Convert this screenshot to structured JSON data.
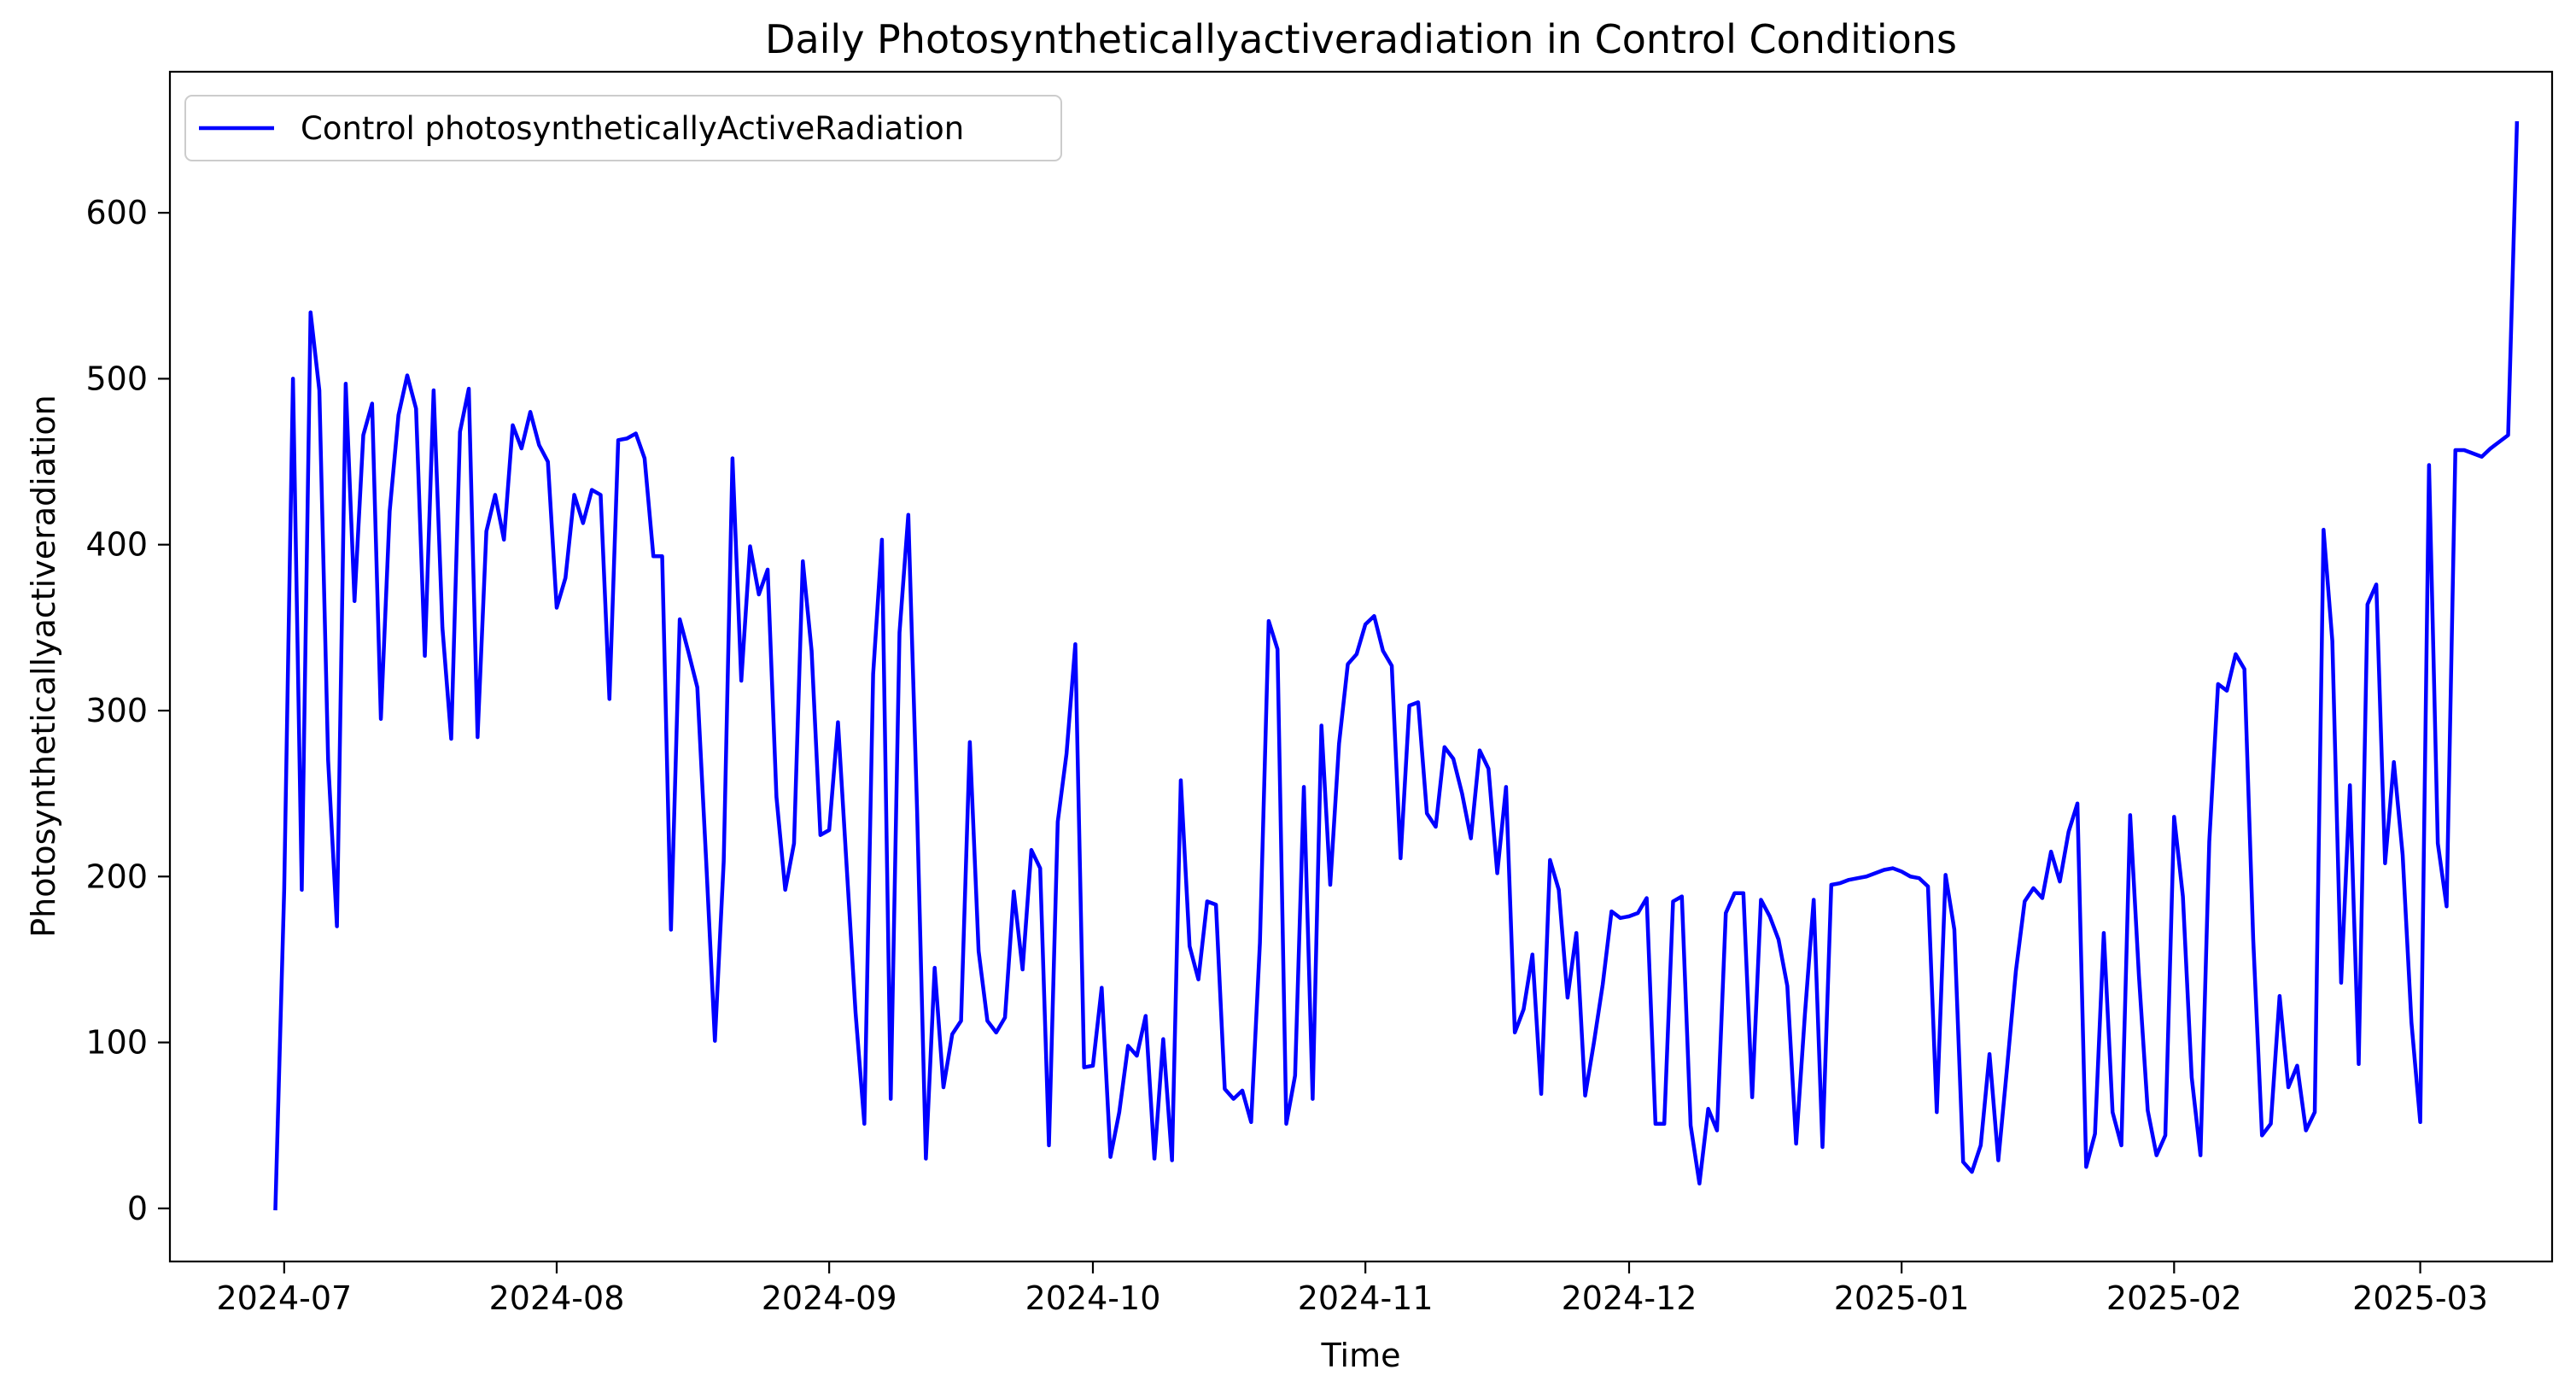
{
  "chart_data": {
    "type": "line",
    "title": "Daily Photosyntheticallyactiveradiation in Control Conditions",
    "xlabel": "Time",
    "ylabel": "Photosyntheticallyactiveradiation",
    "x_range": [
      "2024-06-18",
      "2025-03-16"
    ],
    "ylim": [
      -32,
      685
    ],
    "x_ticks": [
      "2024-07-01",
      "2024-08-01",
      "2024-09-01",
      "2024-10-01",
      "2024-11-01",
      "2024-12-01",
      "2025-01-01",
      "2025-02-01",
      "2025-03-01"
    ],
    "x_tick_labels": [
      "2024-07",
      "2024-08",
      "2024-09",
      "2024-10",
      "2024-11",
      "2024-12",
      "2025-01",
      "2025-02",
      "2025-03"
    ],
    "y_ticks": [
      0,
      100,
      200,
      300,
      400,
      500,
      600
    ],
    "y_tick_labels": [
      "0",
      "100",
      "200",
      "300",
      "400",
      "500",
      "600"
    ],
    "grid": false,
    "legend_position": "upper-left",
    "series": [
      {
        "name": "Control photosyntheticallyActiveRadiation",
        "color": "#0000ff",
        "start_date": "2024-06-30",
        "values": [
          0,
          192,
          500,
          192,
          540,
          493,
          270,
          170,
          497,
          366,
          466,
          485,
          295,
          420,
          478,
          502,
          482,
          333,
          493,
          350,
          283,
          468,
          494,
          284,
          408,
          430,
          403,
          472,
          458,
          480,
          460,
          450,
          362,
          380,
          430,
          413,
          433,
          430,
          307,
          463,
          464,
          467,
          452,
          393,
          393,
          168,
          355,
          335,
          314,
          210,
          101,
          209,
          452,
          318,
          399,
          370,
          385,
          248,
          192,
          220,
          390,
          336,
          225,
          228,
          293,
          205,
          118,
          51,
          322,
          403,
          66,
          347,
          418,
          240,
          30,
          145,
          73,
          105,
          113,
          281,
          155,
          113,
          106,
          115,
          191,
          144,
          216,
          205,
          38,
          233,
          274,
          340,
          85,
          86,
          133,
          31,
          58,
          98,
          92,
          116,
          30,
          102,
          29,
          258,
          158,
          138,
          185,
          183,
          72,
          66,
          71,
          52,
          160,
          354,
          337,
          51,
          80,
          254,
          66,
          291,
          195,
          280,
          328,
          334,
          352,
          357,
          336,
          327,
          211,
          303,
          305,
          238,
          230,
          278,
          271,
          250,
          223,
          276,
          265,
          202,
          254,
          106,
          120,
          153,
          69,
          210,
          192,
          127,
          166,
          68,
          100,
          135,
          179,
          175,
          176,
          178,
          187,
          51,
          51,
          185,
          188,
          50,
          15,
          60,
          47,
          178,
          190,
          190,
          67,
          186,
          176,
          162,
          134,
          39,
          117,
          186,
          37,
          195,
          196,
          198,
          199,
          200,
          202,
          204,
          205,
          203,
          200,
          199,
          194,
          58,
          201,
          168,
          28,
          22,
          38,
          93,
          29,
          85,
          143,
          185,
          193,
          187,
          215,
          197,
          227,
          244,
          25,
          45,
          166,
          58,
          38,
          237,
          140,
          59,
          32,
          44,
          236,
          188,
          79,
          32,
          221,
          316,
          312,
          334,
          325,
          162,
          44,
          51,
          128,
          73,
          86,
          47,
          58,
          409,
          342,
          136,
          255,
          87,
          364,
          376,
          208,
          269,
          213,
          112,
          52,
          448,
          220,
          182,
          457,
          457,
          455,
          453,
          458,
          462,
          466,
          654
        ]
      }
    ]
  }
}
